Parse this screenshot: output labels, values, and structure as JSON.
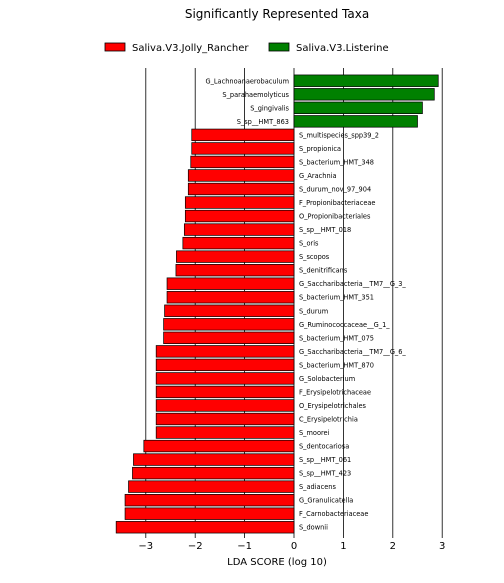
{
  "chart_data": {
    "type": "bar",
    "orientation": "horizontal",
    "title": "Significantly Represented Taxa",
    "xlabel": "LDA SCORE (log 10)",
    "ylabel": "",
    "xlim": [
      -3.65,
      3.1
    ],
    "xticks": [
      -3,
      -2,
      -1,
      0,
      1,
      2,
      3
    ],
    "xtick_labels": [
      "−3",
      "−2",
      "−1",
      "0",
      "1",
      "2",
      "3"
    ],
    "grid": "vertical lines at x ticks",
    "legend_position": "top",
    "legend": [
      {
        "name": "Saliva.V3.Jolly_Rancher",
        "color": "#ff0000"
      },
      {
        "name": "Saliva.V3.Listerine",
        "color": "#008000"
      }
    ],
    "bar_edge_color": "#000000",
    "bars": [
      {
        "label": "G_Lachnoanaerobaculum",
        "value": 2.92,
        "group": 1
      },
      {
        "label": "S_parahaemolyticus",
        "value": 2.84,
        "group": 1
      },
      {
        "label": "S_gingivalis",
        "value": 2.6,
        "group": 1
      },
      {
        "label": "S_sp__HMT_863",
        "value": 2.5,
        "group": 1
      },
      {
        "label": "S_multispecies_spp39_2",
        "value": -2.07,
        "group": 0
      },
      {
        "label": "S_propionica",
        "value": -2.07,
        "group": 0
      },
      {
        "label": "S_bacterium_HMT_348",
        "value": -2.09,
        "group": 0
      },
      {
        "label": "G_Arachnia",
        "value": -2.14,
        "group": 0
      },
      {
        "label": "S_durum_nov_97_904",
        "value": -2.14,
        "group": 0
      },
      {
        "label": "F_Propionibacteriaceae",
        "value": -2.2,
        "group": 0
      },
      {
        "label": "O_Propionibacteriales",
        "value": -2.2,
        "group": 0
      },
      {
        "label": "S_sp__HMT_018",
        "value": -2.22,
        "group": 0
      },
      {
        "label": "S_oris",
        "value": -2.25,
        "group": 0
      },
      {
        "label": "S_scopos",
        "value": -2.38,
        "group": 0
      },
      {
        "label": "S_denitrificans",
        "value": -2.39,
        "group": 0
      },
      {
        "label": "G_Saccharibacteria__TM7__G_3_",
        "value": -2.57,
        "group": 0
      },
      {
        "label": "S_bacterium_HMT_351",
        "value": -2.57,
        "group": 0
      },
      {
        "label": "S_durum",
        "value": -2.62,
        "group": 0
      },
      {
        "label": "G_Ruminococcaceae__G_1_",
        "value": -2.64,
        "group": 0
      },
      {
        "label": "S_bacterium_HMT_075",
        "value": -2.64,
        "group": 0
      },
      {
        "label": "G_Saccharibacteria__TM7__G_6_",
        "value": -2.79,
        "group": 0
      },
      {
        "label": "S_bacterium_HMT_870",
        "value": -2.79,
        "group": 0
      },
      {
        "label": "G_Solobacterium",
        "value": -2.79,
        "group": 0
      },
      {
        "label": "F_Erysipelotrichaceae",
        "value": -2.79,
        "group": 0
      },
      {
        "label": "O_Erysipelotrichales",
        "value": -2.79,
        "group": 0
      },
      {
        "label": "C_Erysipelotrichia",
        "value": -2.79,
        "group": 0
      },
      {
        "label": "S_moorei",
        "value": -2.79,
        "group": 0
      },
      {
        "label": "S_dentocariosa",
        "value": -3.04,
        "group": 0
      },
      {
        "label": "S_sp__HMT_061",
        "value": -3.25,
        "group": 0
      },
      {
        "label": "S_sp__HMT_423",
        "value": -3.27,
        "group": 0
      },
      {
        "label": "S_adiacens",
        "value": -3.35,
        "group": 0
      },
      {
        "label": "G_Granulicatella",
        "value": -3.42,
        "group": 0
      },
      {
        "label": "F_Carnobacteriaceae",
        "value": -3.42,
        "group": 0
      },
      {
        "label": "S_downii",
        "value": -3.6,
        "group": 0
      }
    ]
  }
}
